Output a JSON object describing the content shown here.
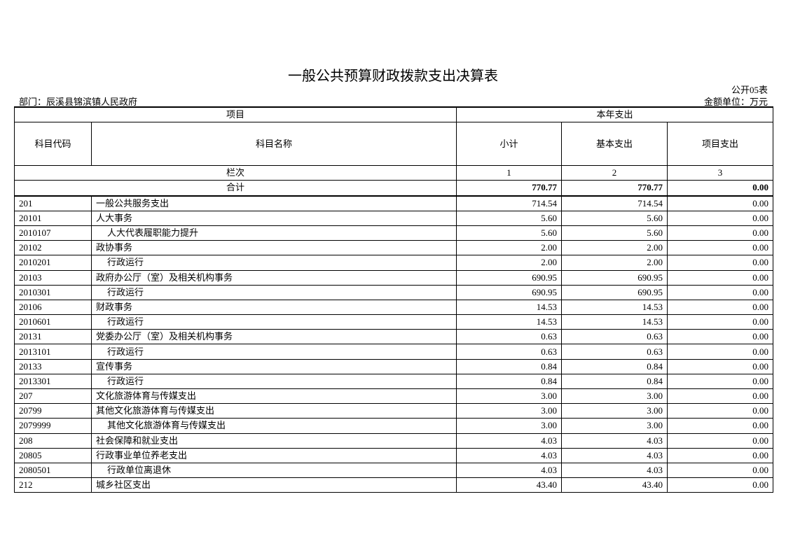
{
  "title": "一般公共预算财政拨款支出决算表",
  "form_no": "公开05表",
  "department": "部门：辰溪县锦滨镇人民政府",
  "unit": "金额单位：万元",
  "header": {
    "item": "项目",
    "current_year": "本年支出",
    "code": "科目代码",
    "name": "科目名称",
    "subtotal": "小计",
    "basic": "基本支出",
    "project": "项目支出",
    "column_index": "栏次",
    "col1": "1",
    "col2": "2",
    "col3": "3"
  },
  "total": {
    "label": "合计",
    "subtotal": "770.77",
    "basic": "770.77",
    "project": "0.00"
  },
  "rows": [
    {
      "code": "201",
      "name": "一般公共服务支出",
      "subtotal": "714.54",
      "basic": "714.54",
      "project": "0.00",
      "level": 1
    },
    {
      "code": "20101",
      "name": "人大事务",
      "subtotal": "5.60",
      "basic": "5.60",
      "project": "0.00",
      "level": 1
    },
    {
      "code": "2010107",
      "name": "人大代表履职能力提升",
      "subtotal": "5.60",
      "basic": "5.60",
      "project": "0.00",
      "level": 2
    },
    {
      "code": "20102",
      "name": "政协事务",
      "subtotal": "2.00",
      "basic": "2.00",
      "project": "0.00",
      "level": 1
    },
    {
      "code": "2010201",
      "name": "行政运行",
      "subtotal": "2.00",
      "basic": "2.00",
      "project": "0.00",
      "level": 2
    },
    {
      "code": "20103",
      "name": "政府办公厅（室）及相关机构事务",
      "subtotal": "690.95",
      "basic": "690.95",
      "project": "0.00",
      "level": 1
    },
    {
      "code": "2010301",
      "name": "行政运行",
      "subtotal": "690.95",
      "basic": "690.95",
      "project": "0.00",
      "level": 2
    },
    {
      "code": "20106",
      "name": "财政事务",
      "subtotal": "14.53",
      "basic": "14.53",
      "project": "0.00",
      "level": 1
    },
    {
      "code": "2010601",
      "name": "行政运行",
      "subtotal": "14.53",
      "basic": "14.53",
      "project": "0.00",
      "level": 2
    },
    {
      "code": "20131",
      "name": "党委办公厅（室）及相关机构事务",
      "subtotal": "0.63",
      "basic": "0.63",
      "project": "0.00",
      "level": 1
    },
    {
      "code": "2013101",
      "name": "行政运行",
      "subtotal": "0.63",
      "basic": "0.63",
      "project": "0.00",
      "level": 2
    },
    {
      "code": "20133",
      "name": "宣传事务",
      "subtotal": "0.84",
      "basic": "0.84",
      "project": "0.00",
      "level": 1
    },
    {
      "code": "2013301",
      "name": "行政运行",
      "subtotal": "0.84",
      "basic": "0.84",
      "project": "0.00",
      "level": 2
    },
    {
      "code": "207",
      "name": "文化旅游体育与传媒支出",
      "subtotal": "3.00",
      "basic": "3.00",
      "project": "0.00",
      "level": 1
    },
    {
      "code": "20799",
      "name": "其他文化旅游体育与传媒支出",
      "subtotal": "3.00",
      "basic": "3.00",
      "project": "0.00",
      "level": 1
    },
    {
      "code": "2079999",
      "name": "其他文化旅游体育与传媒支出",
      "subtotal": "3.00",
      "basic": "3.00",
      "project": "0.00",
      "level": 2
    },
    {
      "code": "208",
      "name": "社会保障和就业支出",
      "subtotal": "4.03",
      "basic": "4.03",
      "project": "0.00",
      "level": 1
    },
    {
      "code": "20805",
      "name": "行政事业单位养老支出",
      "subtotal": "4.03",
      "basic": "4.03",
      "project": "0.00",
      "level": 1
    },
    {
      "code": "2080501",
      "name": "行政单位离退休",
      "subtotal": "4.03",
      "basic": "4.03",
      "project": "0.00",
      "level": 2
    },
    {
      "code": "212",
      "name": "城乡社区支出",
      "subtotal": "43.40",
      "basic": "43.40",
      "project": "0.00",
      "level": 1
    }
  ]
}
